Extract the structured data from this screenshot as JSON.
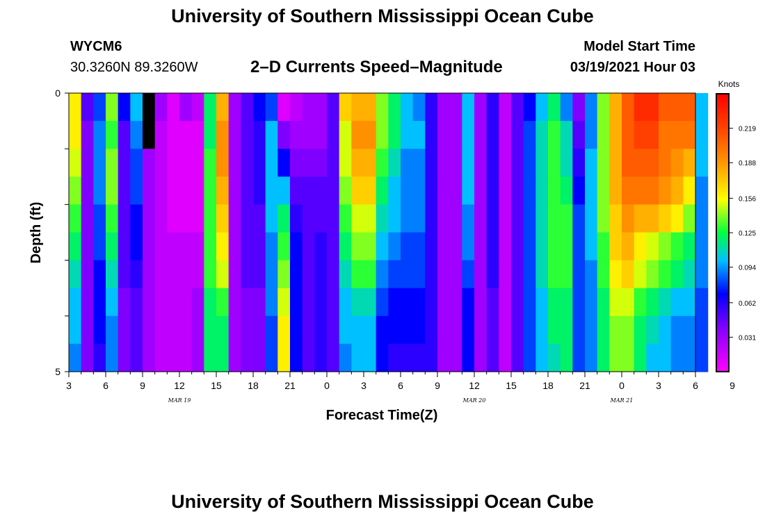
{
  "header": {
    "title": "University of Southern Mississippi Ocean Cube",
    "station": "WYCM6",
    "coordinates": "30.3260N 89.3260W",
    "subtitle": "2–D Currents Speed–Magnitude",
    "model_start_label": "Model Start Time",
    "model_start_value": "03/19/2021 Hour 03"
  },
  "footer": {
    "title": "University of Southern Mississippi Ocean Cube"
  },
  "chart_data": {
    "type": "heatmap",
    "xlabel": "Forecast Time(Z)",
    "ylabel": "Depth (ft)",
    "x_start_hour": 3,
    "x_end_hour": 54,
    "x_hours_per_column": 1,
    "ylim": [
      0,
      5
    ],
    "y_ticks": [
      "0",
      "5"
    ],
    "x_tick_labels": [
      "3",
      "6",
      "9",
      "12",
      "15",
      "18",
      "21",
      "0",
      "3",
      "6",
      "9",
      "12",
      "15",
      "18",
      "21",
      "0",
      "3",
      "6",
      "9"
    ],
    "date_labels": [
      {
        "text": "MAR 19",
        "hour": 12
      },
      {
        "text": "MAR 20",
        "hour": 36
      },
      {
        "text": "MAR 21",
        "hour": 48
      }
    ],
    "colorbar": {
      "label": "Knots",
      "min": 0.0,
      "max": 0.25,
      "ticks": [
        "0.031",
        "0.062",
        "0.094",
        "0.125",
        "0.156",
        "0.188",
        "0.219"
      ],
      "tick_values": [
        0.031,
        0.062,
        0.094,
        0.125,
        0.156,
        0.188,
        0.219
      ]
    },
    "missing_cells": [
      {
        "hour": 9,
        "layer": 0
      },
      {
        "hour": 9,
        "layer": 1
      }
    ],
    "speed_rows": [
      {
        "layer": 0,
        "values": [
          0.16,
          0.05,
          0.08,
          0.14,
          0.07,
          0.1,
          0.03,
          0.03,
          0.01,
          0.03,
          0.02,
          0.12,
          0.18,
          0.03,
          0.05,
          0.07,
          0.08,
          0.01,
          0.02,
          0.03,
          0.03,
          0.05,
          0.17,
          0.18,
          0.18,
          0.14,
          0.12,
          0.1,
          0.09,
          0.06,
          0.03,
          0.03,
          0.1,
          0.03,
          0.06,
          0.02,
          0.05,
          0.07,
          0.1,
          0.12,
          0.09,
          0.04,
          0.09,
          0.14,
          0.18,
          0.21,
          0.23,
          0.23,
          0.21,
          0.21,
          0.21,
          0.1
        ]
      },
      {
        "layer": 1,
        "values": [
          0.16,
          0.04,
          0.09,
          0.13,
          0.05,
          0.09,
          0.03,
          0.02,
          0.01,
          0.01,
          0.01,
          0.12,
          0.19,
          0.03,
          0.05,
          0.06,
          0.1,
          0.04,
          0.03,
          0.03,
          0.03,
          0.05,
          0.15,
          0.19,
          0.19,
          0.14,
          0.12,
          0.1,
          0.1,
          0.06,
          0.03,
          0.03,
          0.1,
          0.03,
          0.06,
          0.02,
          0.05,
          0.08,
          0.11,
          0.13,
          0.11,
          0.05,
          0.09,
          0.14,
          0.18,
          0.21,
          0.22,
          0.22,
          0.2,
          0.2,
          0.2,
          0.1
        ]
      },
      {
        "layer": 2,
        "values": [
          0.15,
          0.04,
          0.09,
          0.14,
          0.05,
          0.08,
          0.03,
          0.02,
          0.01,
          0.01,
          0.01,
          0.13,
          0.19,
          0.03,
          0.05,
          0.06,
          0.1,
          0.07,
          0.04,
          0.04,
          0.04,
          0.05,
          0.15,
          0.18,
          0.18,
          0.13,
          0.11,
          0.09,
          0.09,
          0.06,
          0.03,
          0.03,
          0.1,
          0.03,
          0.06,
          0.02,
          0.05,
          0.08,
          0.11,
          0.13,
          0.11,
          0.06,
          0.1,
          0.14,
          0.18,
          0.21,
          0.21,
          0.21,
          0.2,
          0.19,
          0.18,
          0.1
        ]
      },
      {
        "layer": 3,
        "values": [
          0.14,
          0.04,
          0.09,
          0.14,
          0.05,
          0.08,
          0.03,
          0.02,
          0.01,
          0.01,
          0.01,
          0.13,
          0.18,
          0.03,
          0.05,
          0.06,
          0.1,
          0.1,
          0.05,
          0.05,
          0.05,
          0.05,
          0.14,
          0.17,
          0.17,
          0.12,
          0.1,
          0.09,
          0.09,
          0.06,
          0.03,
          0.03,
          0.1,
          0.03,
          0.06,
          0.02,
          0.05,
          0.08,
          0.11,
          0.13,
          0.12,
          0.07,
          0.1,
          0.14,
          0.18,
          0.2,
          0.2,
          0.2,
          0.19,
          0.18,
          0.16,
          0.09
        ]
      },
      {
        "layer": 4,
        "values": [
          0.13,
          0.04,
          0.08,
          0.13,
          0.05,
          0.07,
          0.03,
          0.02,
          0.01,
          0.01,
          0.01,
          0.13,
          0.17,
          0.03,
          0.05,
          0.05,
          0.1,
          0.12,
          0.06,
          0.05,
          0.05,
          0.05,
          0.13,
          0.15,
          0.15,
          0.11,
          0.1,
          0.09,
          0.09,
          0.06,
          0.03,
          0.03,
          0.09,
          0.03,
          0.06,
          0.02,
          0.05,
          0.08,
          0.11,
          0.13,
          0.13,
          0.08,
          0.1,
          0.14,
          0.17,
          0.19,
          0.18,
          0.18,
          0.17,
          0.16,
          0.14,
          0.09
        ]
      },
      {
        "layer": 5,
        "values": [
          0.12,
          0.04,
          0.08,
          0.12,
          0.05,
          0.07,
          0.03,
          0.02,
          0.02,
          0.02,
          0.02,
          0.13,
          0.16,
          0.03,
          0.05,
          0.05,
          0.09,
          0.13,
          0.07,
          0.05,
          0.06,
          0.05,
          0.12,
          0.14,
          0.14,
          0.1,
          0.09,
          0.08,
          0.08,
          0.06,
          0.03,
          0.03,
          0.09,
          0.03,
          0.06,
          0.02,
          0.05,
          0.08,
          0.11,
          0.13,
          0.13,
          0.08,
          0.1,
          0.13,
          0.17,
          0.18,
          0.16,
          0.15,
          0.14,
          0.13,
          0.12,
          0.09
        ]
      },
      {
        "layer": 6,
        "values": [
          0.11,
          0.04,
          0.07,
          0.11,
          0.05,
          0.06,
          0.03,
          0.02,
          0.02,
          0.02,
          0.02,
          0.13,
          0.15,
          0.03,
          0.05,
          0.05,
          0.09,
          0.14,
          0.07,
          0.05,
          0.06,
          0.05,
          0.11,
          0.13,
          0.13,
          0.09,
          0.08,
          0.08,
          0.08,
          0.06,
          0.03,
          0.03,
          0.08,
          0.03,
          0.06,
          0.02,
          0.05,
          0.08,
          0.11,
          0.13,
          0.13,
          0.08,
          0.09,
          0.13,
          0.16,
          0.17,
          0.15,
          0.14,
          0.13,
          0.12,
          0.11,
          0.09
        ]
      },
      {
        "layer": 7,
        "values": [
          0.1,
          0.04,
          0.07,
          0.1,
          0.04,
          0.05,
          0.03,
          0.02,
          0.02,
          0.02,
          0.03,
          0.12,
          0.13,
          0.03,
          0.04,
          0.04,
          0.09,
          0.15,
          0.07,
          0.05,
          0.06,
          0.05,
          0.1,
          0.11,
          0.11,
          0.08,
          0.07,
          0.07,
          0.07,
          0.06,
          0.03,
          0.03,
          0.07,
          0.03,
          0.05,
          0.02,
          0.05,
          0.08,
          0.1,
          0.12,
          0.12,
          0.08,
          0.09,
          0.12,
          0.15,
          0.15,
          0.13,
          0.12,
          0.11,
          0.1,
          0.1,
          0.08
        ]
      },
      {
        "layer": 8,
        "values": [
          0.1,
          0.04,
          0.07,
          0.09,
          0.04,
          0.05,
          0.03,
          0.02,
          0.02,
          0.02,
          0.03,
          0.12,
          0.12,
          0.03,
          0.04,
          0.04,
          0.08,
          0.16,
          0.07,
          0.05,
          0.06,
          0.05,
          0.1,
          0.1,
          0.1,
          0.07,
          0.07,
          0.07,
          0.07,
          0.06,
          0.03,
          0.03,
          0.07,
          0.03,
          0.05,
          0.02,
          0.05,
          0.08,
          0.1,
          0.12,
          0.12,
          0.08,
          0.09,
          0.12,
          0.14,
          0.14,
          0.12,
          0.11,
          0.1,
          0.09,
          0.09,
          0.08
        ]
      },
      {
        "layer": 9,
        "values": [
          0.09,
          0.04,
          0.06,
          0.09,
          0.04,
          0.05,
          0.03,
          0.02,
          0.02,
          0.02,
          0.03,
          0.12,
          0.12,
          0.03,
          0.04,
          0.04,
          0.08,
          0.16,
          0.07,
          0.05,
          0.06,
          0.05,
          0.09,
          0.1,
          0.1,
          0.07,
          0.06,
          0.06,
          0.06,
          0.06,
          0.03,
          0.03,
          0.07,
          0.03,
          0.05,
          0.02,
          0.05,
          0.08,
          0.1,
          0.11,
          0.12,
          0.08,
          0.09,
          0.12,
          0.14,
          0.14,
          0.12,
          0.1,
          0.1,
          0.09,
          0.09,
          0.08
        ]
      }
    ]
  }
}
